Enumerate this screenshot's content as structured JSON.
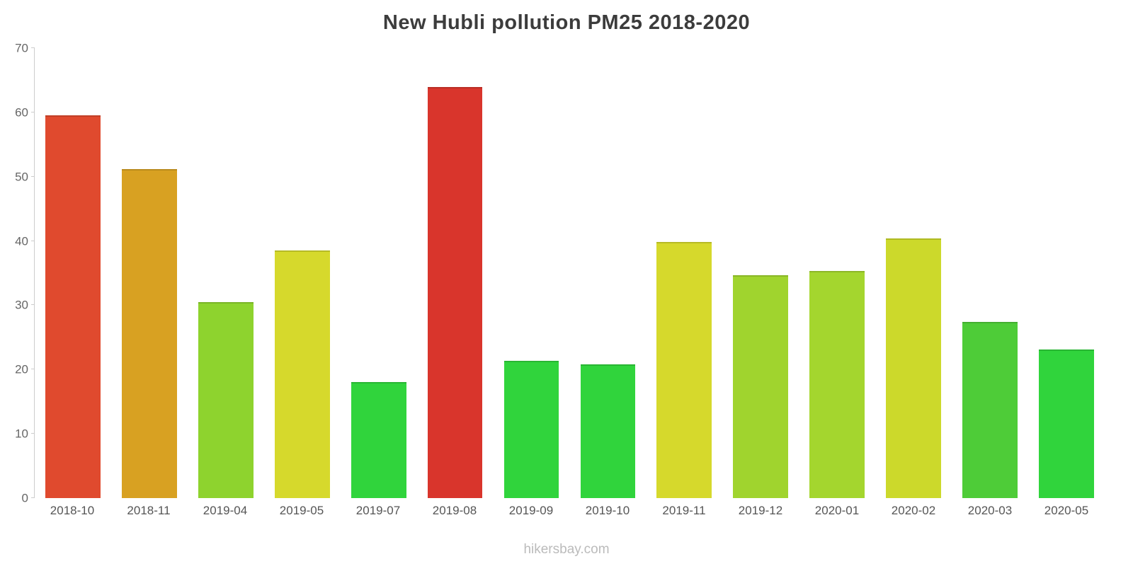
{
  "page": {
    "footer_text": "hikersbay.com"
  },
  "chart_data": {
    "type": "bar",
    "title": "New Hubli pollution PM25 2018-2020",
    "categories": [
      "2018-10",
      "2018-11",
      "2019-04",
      "2019-05",
      "2019-07",
      "2019-08",
      "2019-09",
      "2019-10",
      "2019-11",
      "2019-12",
      "2020-01",
      "2020-02",
      "2020-03",
      "2020-05"
    ],
    "values": [
      59.5,
      51.2,
      30.5,
      38.5,
      18.1,
      63.9,
      21.3,
      20.8,
      39.8,
      34.7,
      35.3,
      40.4,
      27.4,
      23.1
    ],
    "colors": [
      "#e04a2e",
      "#d8a122",
      "#8ed32e",
      "#d6d92c",
      "#30d43c",
      "#d9352c",
      "#30d43c",
      "#30d43c",
      "#d6d92c",
      "#a0d42e",
      "#a4d62e",
      "#ccd92b",
      "#4ecc38",
      "#30d43c"
    ],
    "xlabel": "",
    "ylabel": "",
    "ylim": [
      0,
      70
    ],
    "yticks": [
      0,
      10,
      20,
      30,
      40,
      50,
      60,
      70
    ],
    "grid": false,
    "legend": false,
    "axis_color": "#cccccc"
  }
}
